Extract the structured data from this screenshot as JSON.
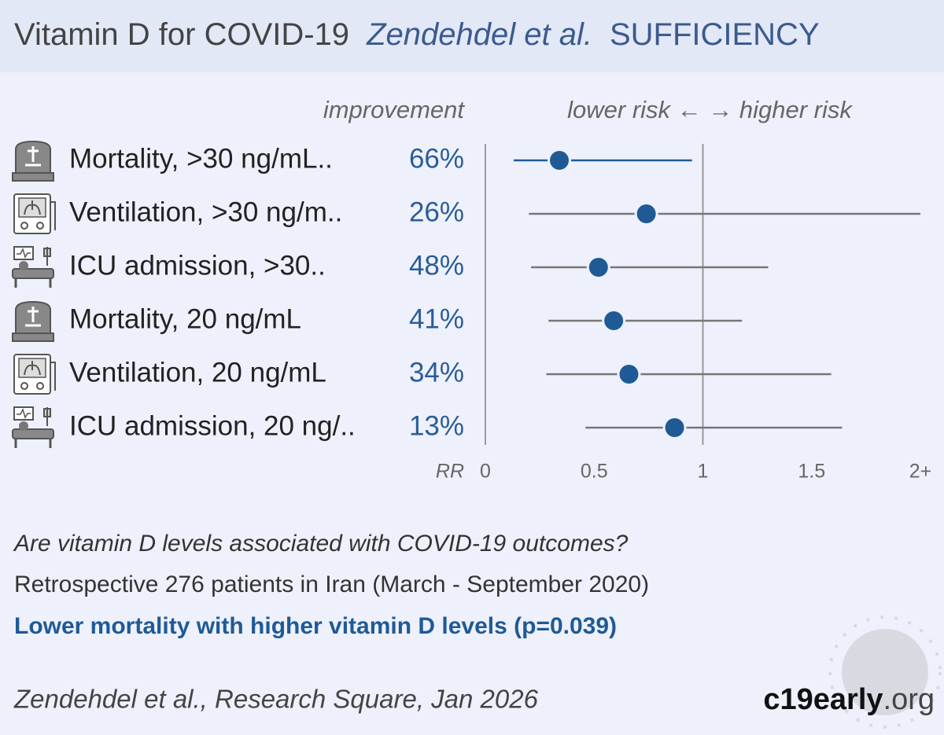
{
  "title": {
    "main": "Vitamin D for COVID-19",
    "authors": "Zendehdel et al.",
    "tag": "SUFFICIENCY"
  },
  "chart_data": {
    "type": "forest",
    "improvement_header": "improvement",
    "risk_header": "lower risk ← → higher risk",
    "axis_label": "RR",
    "xlim": [
      0,
      2
    ],
    "xticks": [
      0,
      0.5,
      1,
      1.5,
      {
        "value": 2,
        "label": "2+"
      }
    ],
    "reference": 1,
    "rows": [
      {
        "label": "Mortality, >30 ng/mL..",
        "improvement": "66%",
        "rr": 0.34,
        "ci": [
          0.13,
          0.95
        ],
        "color": "#1f5a96"
      },
      {
        "label": "Ventilation, >30 ng/m..",
        "improvement": "26%",
        "rr": 0.74,
        "ci": [
          0.2,
          2.0
        ],
        "color": "#777777"
      },
      {
        "label": "ICU admission, >30..",
        "improvement": "48%",
        "rr": 0.52,
        "ci": [
          0.21,
          1.3
        ],
        "color": "#777777"
      },
      {
        "label": "Mortality, 20 ng/mL",
        "improvement": "41%",
        "rr": 0.59,
        "ci": [
          0.29,
          1.18
        ],
        "color": "#777777"
      },
      {
        "label": "Ventilation, 20 ng/mL",
        "improvement": "34%",
        "rr": 0.66,
        "ci": [
          0.28,
          1.59
        ],
        "color": "#777777"
      },
      {
        "label": "ICU admission, 20 ng/..",
        "improvement": "13%",
        "rr": 0.87,
        "ci": [
          0.46,
          1.64
        ],
        "color": "#777777"
      }
    ],
    "dot_color": "#1f5a96"
  },
  "summary": {
    "question": "Are vitamin D levels associated with COVID-19 outcomes?",
    "design": "Retrospective 276 patients in Iran (March - September 2020)",
    "finding": "Lower mortality with higher vitamin D levels (p=0.039)"
  },
  "footer": {
    "citation": "Zendehdel et al., Research Square, Jan 2026",
    "logo": [
      "c19early",
      ".org"
    ]
  }
}
